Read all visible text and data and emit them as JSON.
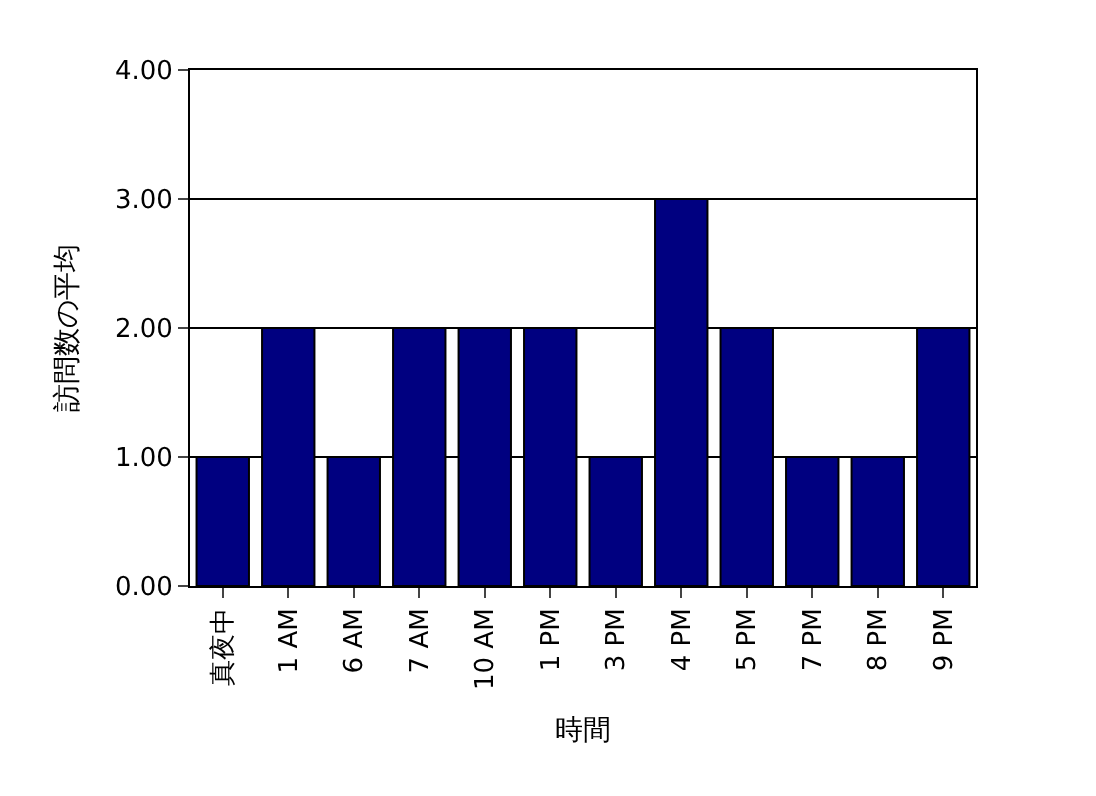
{
  "chart_data": {
    "type": "bar",
    "xlabel": "時間",
    "ylabel": "訪問数の平均",
    "categories": [
      "真夜中",
      "1 AM",
      "6 AM",
      "7 AM",
      "10 AM",
      "1 PM",
      "3 PM",
      "4 PM",
      "5 PM",
      "7 PM",
      "8 PM",
      "9 PM"
    ],
    "values": [
      1,
      2,
      1,
      2,
      2,
      2,
      1,
      3,
      2,
      1,
      1,
      2
    ],
    "color": "#000080",
    "ylim": [
      0,
      4
    ],
    "yticks": [
      {
        "value": 0,
        "label": "0.00"
      },
      {
        "value": 1,
        "label": "1.00"
      },
      {
        "value": 2,
        "label": "2.00"
      },
      {
        "value": 3,
        "label": "3.00"
      },
      {
        "value": 4,
        "label": "4.00"
      }
    ],
    "grid": "y",
    "legend": false
  }
}
